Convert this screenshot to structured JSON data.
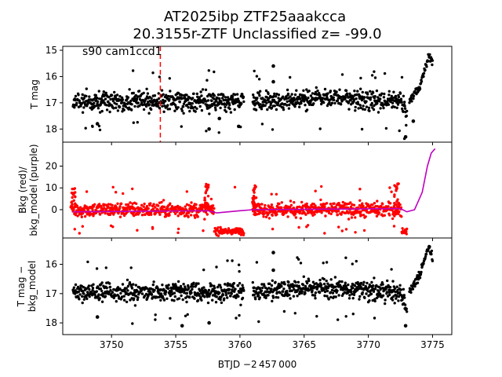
{
  "figure": {
    "title_line1": "AT2025ibp  ZTF25aaakcca",
    "title_line2": "20.3155r-ZTF Unclassified z= -99.0",
    "annotation": "s90 cam1ccd1",
    "xlabel": "BTJD −2 457 000",
    "colors": {
      "black": "#000000",
      "red": "#ff0000",
      "purple": "#bf00bf",
      "marker_line": "#ff0000"
    }
  },
  "chart_data": [
    {
      "type": "scatter",
      "panel": "top",
      "ylabel": "T mag",
      "y_inverted": true,
      "xlim": [
        3746.2,
        3776.5
      ],
      "ylim": [
        18.5,
        14.85
      ],
      "xticks": [
        3750,
        3755,
        3760,
        3765,
        3770,
        3775
      ],
      "yticks": [
        15,
        16,
        17,
        18
      ],
      "vline_x": 3753.8,
      "series": [
        {
          "color": "#000000",
          "segments": [
            [
              3747.0,
              3760.3
            ],
            [
              3761.0,
              3773.0
            ]
          ],
          "baseline": 16.95,
          "spread": 0.35,
          "trend": [
            [
              3747.0,
              16.95
            ],
            [
              3760.3,
              16.95
            ],
            [
              3761.0,
              16.95
            ],
            [
              3766.0,
              16.8
            ],
            [
              3772.5,
              16.95
            ],
            [
              3773.0,
              17.5
            ]
          ],
          "rise": [
            [
              3773.2,
              16.9
            ],
            [
              3774.0,
              16.4
            ],
            [
              3774.5,
              15.6
            ],
            [
              3774.7,
              15.2
            ],
            [
              3775.0,
              15.4
            ]
          ],
          "outliers": [
            [
              3762.6,
              15.6
            ],
            [
              3762.6,
              16.2
            ],
            [
              3757.6,
              18.0
            ],
            [
              3758.4,
              17.6
            ],
            [
              3748.9,
              17.8
            ],
            [
              3772.9,
              18.3
            ],
            [
              3773.5,
              17.7
            ],
            [
              3759.9,
              17.9
            ]
          ]
        }
      ]
    },
    {
      "type": "scatter",
      "panel": "middle",
      "ylabel": "Bkg (red)/\nbkg_model (purple)",
      "xlim": [
        3746.2,
        3776.5
      ],
      "ylim": [
        -13,
        31
      ],
      "xticks": [
        3750,
        3755,
        3760,
        3765,
        3770,
        3775
      ],
      "yticks": [
        0,
        10,
        20
      ],
      "series": [
        {
          "color": "#ff0000",
          "segments": [
            [
              3747.0,
              3760.3
            ],
            [
              3761.0,
              3773.0
            ]
          ],
          "baseline": 0,
          "spread": 3.2,
          "dips": [
            [
              3758.0,
              3760.3,
              -10
            ],
            [
              3772.6,
              3773.6,
              -10
            ]
          ],
          "spikes": [
            [
              3747.0,
              10
            ],
            [
              3757.4,
              12
            ],
            [
              3761.1,
              12
            ],
            [
              3772.2,
              12
            ]
          ]
        },
        {
          "color": "#bf00bf",
          "line": [
            [
              3747.0,
              -1
            ],
            [
              3757.5,
              -0.5
            ],
            [
              3758.2,
              -1.5
            ],
            [
              3760.0,
              -0.5
            ],
            [
              3761.0,
              0
            ],
            [
              3772.5,
              0.5
            ],
            [
              3773.0,
              -1
            ],
            [
              3773.6,
              0
            ],
            [
              3774.2,
              8
            ],
            [
              3774.6,
              20
            ],
            [
              3774.9,
              26
            ],
            [
              3775.2,
              28
            ]
          ]
        }
      ]
    },
    {
      "type": "scatter",
      "panel": "bottom",
      "ylabel": "T mag −\nbkg_model",
      "y_inverted": true,
      "xlim": [
        3746.2,
        3776.5
      ],
      "ylim": [
        18.4,
        15.1
      ],
      "xticks": [
        3750,
        3755,
        3760,
        3765,
        3770,
        3775
      ],
      "xticklabels": [
        "3750",
        "3755",
        "3760",
        "3765",
        "3770",
        "3775"
      ],
      "yticks": [
        16,
        17,
        18
      ],
      "series": [
        {
          "color": "#000000",
          "segments": [
            [
              3747.0,
              3760.3
            ],
            [
              3761.0,
              3773.0
            ]
          ],
          "baseline": 16.95,
          "spread": 0.32,
          "trend": [
            [
              3747.0,
              16.95
            ],
            [
              3760.3,
              16.95
            ],
            [
              3761.0,
              16.95
            ],
            [
              3766.0,
              16.8
            ],
            [
              3772.5,
              16.95
            ],
            [
              3773.0,
              17.5
            ]
          ],
          "rise": [
            [
              3773.2,
              16.9
            ],
            [
              3774.0,
              16.4
            ],
            [
              3774.5,
              15.6
            ],
            [
              3774.7,
              15.4
            ],
            [
              3775.0,
              15.8
            ]
          ],
          "outliers": [
            [
              3762.6,
              15.6
            ],
            [
              3762.6,
              16.2
            ],
            [
              3757.6,
              18.0
            ],
            [
              3755.5,
              18.1
            ],
            [
              3772.9,
              18.1
            ],
            [
              3748.9,
              17.8
            ]
          ]
        }
      ]
    }
  ]
}
